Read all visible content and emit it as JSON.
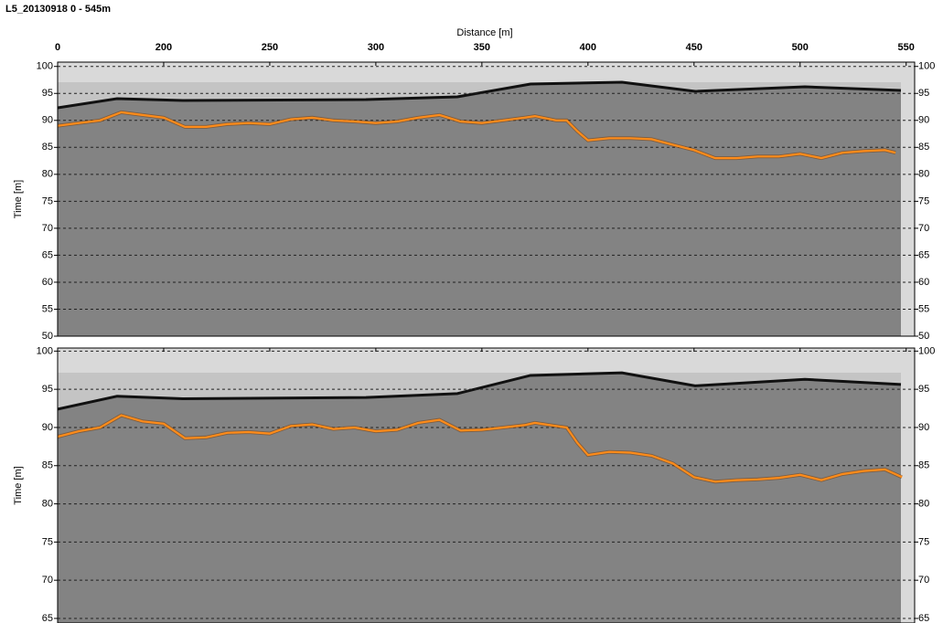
{
  "chart_data": [
    {
      "type": "line",
      "title": "L5_20130918 0 - 545m",
      "xlabel": "Distance [m]",
      "ylabel": "Time [m]",
      "xlim": [
        150,
        554
      ],
      "xticks": [
        {
          "value": 150,
          "label": "0"
        },
        200,
        250,
        300,
        350,
        400,
        450,
        500,
        550
      ],
      "ylim": [
        50,
        100.8
      ],
      "yticks": [
        50,
        55,
        60,
        65,
        70,
        75,
        80,
        85,
        90,
        95,
        100
      ],
      "grid": true,
      "x": [
        150,
        160,
        170,
        180,
        190,
        200,
        210,
        220,
        230,
        240,
        250,
        260,
        270,
        280,
        290,
        300,
        310,
        320,
        330,
        340,
        350,
        360,
        370,
        375,
        385,
        390,
        395,
        400,
        410,
        420,
        430,
        440,
        450,
        460,
        470,
        480,
        490,
        500,
        510,
        520,
        530,
        540,
        545
      ],
      "series": [
        {
          "color": "#ff8c1a",
          "values": [
            89,
            89.5,
            90,
            91.5,
            91,
            90.5,
            88.8,
            88.8,
            89.3,
            89.5,
            89.3,
            90.2,
            90.5,
            90,
            89.8,
            89.5,
            89.8,
            90.5,
            91,
            89.8,
            89.5,
            90,
            90.5,
            90.8,
            90,
            90,
            88,
            86.3,
            86.7,
            86.7,
            86.5,
            85.5,
            84.5,
            83,
            83,
            83.3,
            83.3,
            83.8,
            83,
            84,
            84.3,
            84.5,
            84
          ]
        }
      ]
    },
    {
      "type": "line",
      "ylabel": "Time [m]",
      "xlim": [
        150,
        554
      ],
      "ylim": [
        64.4,
        100.4
      ],
      "yticks": [
        65,
        70,
        75,
        80,
        85,
        90,
        95,
        100
      ],
      "grid": true,
      "x": [
        150,
        160,
        170,
        180,
        190,
        200,
        210,
        220,
        230,
        240,
        250,
        260,
        270,
        280,
        290,
        300,
        310,
        320,
        330,
        340,
        350,
        360,
        370,
        375,
        385,
        390,
        395,
        400,
        410,
        420,
        430,
        440,
        450,
        460,
        470,
        480,
        490,
        500,
        510,
        520,
        530,
        540,
        548
      ],
      "series": [
        {
          "color": "#ff8c1a",
          "values": [
            88.8,
            89.5,
            90,
            91.6,
            90.8,
            90.5,
            88.6,
            88.7,
            89.3,
            89.4,
            89.2,
            90.2,
            90.4,
            89.8,
            90,
            89.5,
            89.7,
            90.6,
            91,
            89.6,
            89.7,
            90,
            90.3,
            90.6,
            90.2,
            90,
            88,
            86.4,
            86.8,
            86.7,
            86.3,
            85.3,
            83.5,
            82.9,
            83.1,
            83.2,
            83.4,
            83.8,
            83.1,
            83.9,
            84.3,
            84.5,
            83.5
          ]
        }
      ]
    }
  ]
}
